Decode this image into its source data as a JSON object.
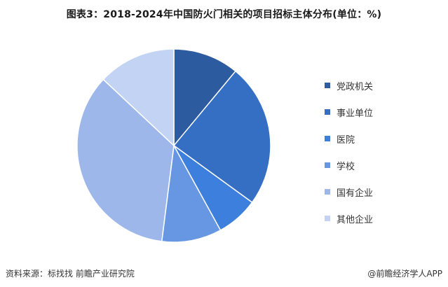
{
  "title": "图表3：2018-2024年中国防火门相关的项目招标主体分布(单位：%)",
  "source": "资料来源：标找找 前瞻产业研究院",
  "copyright": "@前瞻经济学人APP",
  "chart_data": {
    "type": "pie",
    "title": "图表3：2018-2024年中国防火门相关的项目招标主体分布(单位：%)",
    "unit": "%",
    "legend_position": "right",
    "slices": [
      {
        "label": "党政机关",
        "value": 11,
        "color": "#2c5ba0"
      },
      {
        "label": "事业单位",
        "value": 24,
        "color": "#346fc4"
      },
      {
        "label": "医院",
        "value": 7,
        "color": "#3d7fdc"
      },
      {
        "label": "学校",
        "value": 10,
        "color": "#6797e3"
      },
      {
        "label": "国有企业",
        "value": 35,
        "color": "#9db7eb"
      },
      {
        "label": "其他企业",
        "value": 13,
        "color": "#c3d3f4"
      }
    ]
  }
}
